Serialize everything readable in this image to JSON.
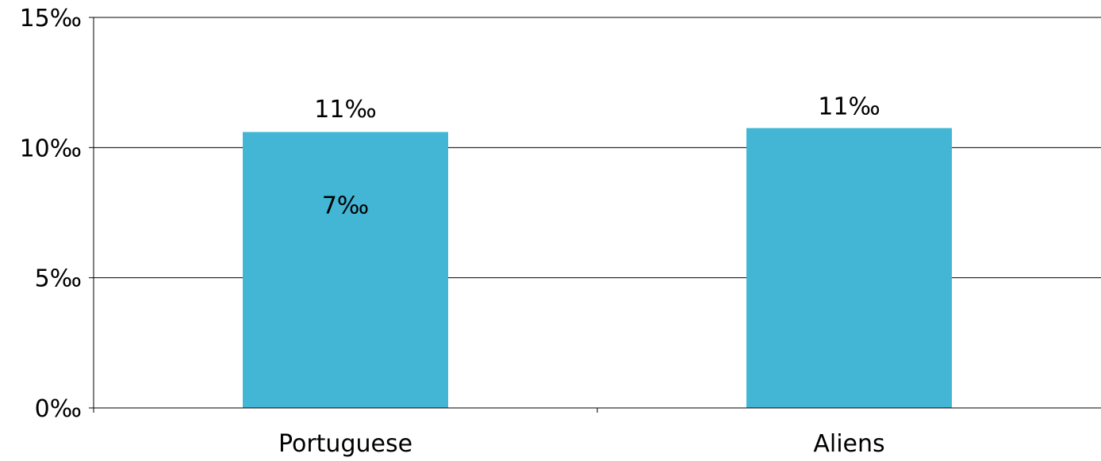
{
  "chart_data": {
    "type": "bar",
    "title": "",
    "xlabel": "",
    "ylabel": "",
    "categories": [
      "Portuguese",
      "Aliens"
    ],
    "values": [
      10.6,
      10.75
    ],
    "ylim": [
      0,
      15
    ],
    "yticks": [
      {
        "value": 0,
        "label": "0‰"
      },
      {
        "value": 5,
        "label": "5‰"
      },
      {
        "value": 10,
        "label": "10‰"
      },
      {
        "value": 15,
        "label": "15‰"
      }
    ],
    "data_labels": [
      {
        "category": "Portuguese",
        "text": "11‰",
        "value": 11.5
      },
      {
        "category": "Portuguese",
        "text": "7‰",
        "value": 7.8
      },
      {
        "category": "Aliens",
        "text": "11‰",
        "value": 11.6
      }
    ],
    "grid": true,
    "bar_color": "#42B6D4",
    "grid_color": "#000000"
  }
}
